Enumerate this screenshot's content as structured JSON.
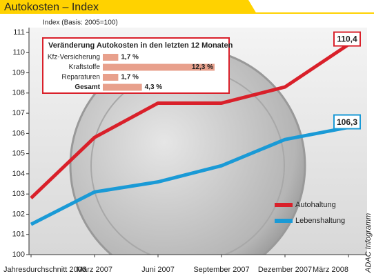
{
  "chart_data": [
    {
      "type": "line",
      "title": "Autokosten – Index",
      "y_label": "Index (Basis: 2005=100)",
      "categories": [
        "Jahresdurchschnitt 2006",
        "März 2007",
        "Juni 2007",
        "September 2007",
        "Dezember 2007",
        "März 2008"
      ],
      "series": [
        {
          "name": "Autohaltung",
          "color": "#d9202a",
          "values": [
            102.8,
            105.8,
            107.5,
            107.5,
            108.3,
            110.4
          ],
          "value_labels": [
            null,
            null,
            null,
            null,
            null,
            "110,4"
          ]
        },
        {
          "name": "Lebenshaltung",
          "color": "#1a9ad6",
          "values": [
            101.5,
            103.1,
            103.6,
            104.4,
            105.7,
            106.3
          ],
          "value_labels": [
            null,
            null,
            null,
            null,
            null,
            "106,3"
          ]
        }
      ],
      "ylim": [
        100,
        111
      ],
      "yticks": [
        100,
        101,
        102,
        103,
        104,
        105,
        106,
        107,
        108,
        109,
        110,
        111
      ],
      "legend": "lower right",
      "source": "ADAC Infogramm"
    },
    {
      "type": "bar",
      "orientation": "horizontal",
      "title": "Veränderung Autokosten in den letzten 12 Monaten",
      "categories": [
        "Kfz-Versicherung",
        "Kraftstoffe",
        "Reparaturen",
        "Gesamt"
      ],
      "values": [
        1.7,
        12.3,
        1.7,
        4.3
      ],
      "value_labels": [
        "1,7 %",
        "12,3 %",
        "1,7 %",
        "4,3 %"
      ],
      "color": "#e8a08c"
    }
  ]
}
